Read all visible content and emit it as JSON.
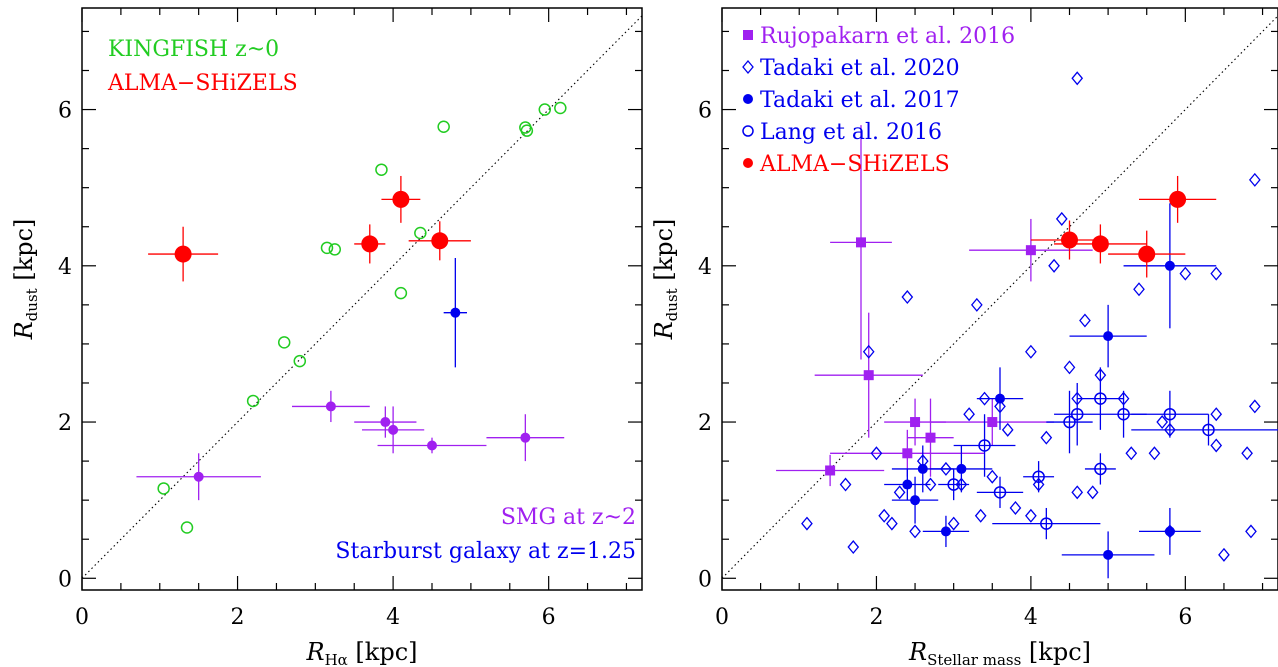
{
  "chart_data": [
    {
      "type": "scatter",
      "panel": "left",
      "xlabel": {
        "main": "R",
        "sub": "Hα",
        "unit": " [kpc]"
      },
      "ylabel": {
        "main": "R",
        "sub": "dust",
        "unit": " [kpc]"
      },
      "xlim": [
        0,
        7.2
      ],
      "ylim": [
        -0.15,
        7.3
      ],
      "xticks": [
        "0",
        "2",
        "4",
        "6"
      ],
      "yticks": [
        "0",
        "2",
        "4",
        "6"
      ],
      "grid": false,
      "one_to_one_line": true,
      "annotations": [
        {
          "text": "KINGFISH z~0",
          "color": "#22cc22",
          "position": "top-left"
        },
        {
          "text": "ALMA−SHiZELS",
          "color": "#ff0000",
          "position": "top-left"
        },
        {
          "text": "SMG at z~2",
          "color": "#a020f0",
          "position": "bottom-right"
        },
        {
          "text": "Starburst galaxy at z=1.25",
          "color": "#0000ee",
          "position": "bottom-right"
        }
      ],
      "series": [
        {
          "name": "KINGFISH z~0",
          "color": "#22cc22",
          "marker": "open-circle",
          "points": [
            {
              "x": 1.05,
              "y": 1.15
            },
            {
              "x": 1.35,
              "y": 0.65
            },
            {
              "x": 2.2,
              "y": 2.27
            },
            {
              "x": 2.6,
              "y": 3.02
            },
            {
              "x": 2.8,
              "y": 2.78
            },
            {
              "x": 3.15,
              "y": 4.23
            },
            {
              "x": 3.25,
              "y": 4.21
            },
            {
              "x": 3.85,
              "y": 5.23
            },
            {
              "x": 4.1,
              "y": 3.65
            },
            {
              "x": 4.35,
              "y": 4.42
            },
            {
              "x": 4.65,
              "y": 5.78
            },
            {
              "x": 5.7,
              "y": 5.77
            },
            {
              "x": 5.72,
              "y": 5.73
            },
            {
              "x": 5.95,
              "y": 6.0
            },
            {
              "x": 6.15,
              "y": 6.02
            }
          ]
        },
        {
          "name": "ALMA−SHiZELS",
          "color": "#ff0000",
          "marker": "filled-circle-large",
          "points": [
            {
              "x": 1.3,
              "y": 4.15,
              "xerr": 0.45,
              "yerr": 0.35
            },
            {
              "x": 3.7,
              "y": 4.28,
              "xerr": 0.2,
              "yerr": 0.25
            },
            {
              "x": 4.1,
              "y": 4.85,
              "xerr": 0.25,
              "yerr": 0.3
            },
            {
              "x": 4.6,
              "y": 4.32,
              "xerr": 0.4,
              "yerr": 0.25
            }
          ]
        },
        {
          "name": "SMG at z~2",
          "color": "#a020f0",
          "marker": "filled-circle",
          "points": [
            {
              "x": 1.5,
              "y": 1.3,
              "xerr": 0.8,
              "yerr": 0.3
            },
            {
              "x": 3.2,
              "y": 2.2,
              "xerr": 0.5,
              "yerr": 0.2
            },
            {
              "x": 3.9,
              "y": 2.0,
              "xerr": 0.4,
              "yerr": 0.2
            },
            {
              "x": 4.0,
              "y": 1.9,
              "xerr": 0.4,
              "yerr": 0.3
            },
            {
              "x": 4.5,
              "y": 1.7,
              "xerr": 0.7,
              "yerr": 0.1
            },
            {
              "x": 5.7,
              "y": 1.8,
              "xerr": 0.5,
              "yerr": 0.3
            }
          ]
        },
        {
          "name": "Starburst galaxy at z=1.25",
          "color": "#0000ee",
          "marker": "filled-circle",
          "points": [
            {
              "x": 4.8,
              "y": 3.4,
              "xerr": 0.15,
              "yerr": 0.7
            }
          ]
        }
      ]
    },
    {
      "type": "scatter",
      "panel": "right",
      "xlabel": {
        "main": "R",
        "sub": "Stellar mass",
        "unit": " [kpc]"
      },
      "ylabel": {
        "main": "R",
        "sub": "dust",
        "unit": " [kpc]"
      },
      "xlim": [
        0,
        7.2
      ],
      "ylim": [
        -0.15,
        7.3
      ],
      "xticks": [
        "0",
        "2",
        "4",
        "6"
      ],
      "yticks": [
        "0",
        "2",
        "4",
        "6"
      ],
      "grid": false,
      "one_to_one_line": true,
      "legend": [
        {
          "text": "Rujopakarn et al. 2016",
          "color": "#a020f0",
          "marker": "filled-square"
        },
        {
          "text": "Tadaki et al. 2020",
          "color": "#0000ee",
          "marker": "open-diamond"
        },
        {
          "text": "Tadaki et al. 2017",
          "color": "#0000ee",
          "marker": "filled-circle"
        },
        {
          "text": "Lang et al. 2016",
          "color": "#0000ee",
          "marker": "open-circle"
        },
        {
          "text": "ALMA−SHiZELS",
          "color": "#ff0000",
          "marker": "filled-circle"
        }
      ],
      "series": [
        {
          "name": "Rujopakarn et al. 2016",
          "color": "#a020f0",
          "marker": "filled-square",
          "points": [
            {
              "x": 1.4,
              "y": 1.38,
              "xerr": 0.7,
              "yerr": 0.2
            },
            {
              "x": 1.8,
              "y": 4.3,
              "xerr": 0.4,
              "yerr": 1.5
            },
            {
              "x": 1.9,
              "y": 2.6,
              "xerr": 0.7,
              "yerr": 0.8
            },
            {
              "x": 2.4,
              "y": 1.6,
              "xerr": 1.0,
              "yerr": 0.3
            },
            {
              "x": 2.5,
              "y": 2.0,
              "xerr": 0.4,
              "yerr": 0.3
            },
            {
              "x": 2.7,
              "y": 1.8,
              "xerr": 0.3,
              "yerr": 0.5
            },
            {
              "x": 3.5,
              "y": 2.0,
              "xerr": 0.8,
              "yerr": 0.3
            },
            {
              "x": 4.0,
              "y": 4.2,
              "xerr": 0.8,
              "yerr": 0.4
            }
          ]
        },
        {
          "name": "Tadaki et al. 2020",
          "color": "#0000ee",
          "marker": "open-diamond",
          "points": [
            {
              "x": 1.1,
              "y": 0.7
            },
            {
              "x": 1.6,
              "y": 1.2
            },
            {
              "x": 1.7,
              "y": 0.4
            },
            {
              "x": 1.9,
              "y": 2.9
            },
            {
              "x": 2.0,
              "y": 1.6
            },
            {
              "x": 2.1,
              "y": 0.8
            },
            {
              "x": 2.2,
              "y": 0.7
            },
            {
              "x": 2.3,
              "y": 1.1
            },
            {
              "x": 2.4,
              "y": 3.6
            },
            {
              "x": 2.5,
              "y": 0.6
            },
            {
              "x": 2.6,
              "y": 1.5
            },
            {
              "x": 2.7,
              "y": 1.2
            },
            {
              "x": 2.9,
              "y": 1.4
            },
            {
              "x": 3.0,
              "y": 0.7
            },
            {
              "x": 3.1,
              "y": 1.2
            },
            {
              "x": 3.2,
              "y": 2.1
            },
            {
              "x": 3.3,
              "y": 3.5
            },
            {
              "x": 3.35,
              "y": 0.8
            },
            {
              "x": 3.4,
              "y": 2.3
            },
            {
              "x": 3.5,
              "y": 1.3
            },
            {
              "x": 3.6,
              "y": 2.2
            },
            {
              "x": 3.7,
              "y": 1.9
            },
            {
              "x": 3.8,
              "y": 0.9
            },
            {
              "x": 4.0,
              "y": 0.8
            },
            {
              "x": 4.0,
              "y": 2.9
            },
            {
              "x": 4.1,
              "y": 1.2
            },
            {
              "x": 4.2,
              "y": 1.8
            },
            {
              "x": 4.3,
              "y": 4.0
            },
            {
              "x": 4.4,
              "y": 4.6
            },
            {
              "x": 4.5,
              "y": 2.7
            },
            {
              "x": 4.6,
              "y": 1.1
            },
            {
              "x": 4.6,
              "y": 2.3
            },
            {
              "x": 4.6,
              "y": 6.4
            },
            {
              "x": 4.7,
              "y": 3.3
            },
            {
              "x": 4.8,
              "y": 1.1
            },
            {
              "x": 4.9,
              "y": 2.6
            },
            {
              "x": 5.2,
              "y": 2.3
            },
            {
              "x": 5.3,
              "y": 1.6
            },
            {
              "x": 5.4,
              "y": 3.7
            },
            {
              "x": 5.6,
              "y": 1.6
            },
            {
              "x": 5.7,
              "y": 2.0
            },
            {
              "x": 5.8,
              "y": 0.6
            },
            {
              "x": 5.8,
              "y": 1.9
            },
            {
              "x": 6.0,
              "y": 3.9
            },
            {
              "x": 6.4,
              "y": 1.7
            },
            {
              "x": 6.4,
              "y": 2.1
            },
            {
              "x": 6.4,
              "y": 3.9
            },
            {
              "x": 6.5,
              "y": 0.3
            },
            {
              "x": 6.8,
              "y": 1.6
            },
            {
              "x": 6.85,
              "y": 0.6
            },
            {
              "x": 6.9,
              "y": 2.2
            },
            {
              "x": 6.9,
              "y": 5.1
            }
          ]
        },
        {
          "name": "Tadaki et al. 2017",
          "color": "#0000ee",
          "marker": "filled-circle",
          "points": [
            {
              "x": 2.4,
              "y": 1.2,
              "xerr": 0.3,
              "yerr": 0.2
            },
            {
              "x": 2.5,
              "y": 1.0,
              "xerr": 0.3,
              "yerr": 0.3
            },
            {
              "x": 2.6,
              "y": 1.4,
              "xerr": 0.4,
              "yerr": 0.3
            },
            {
              "x": 2.9,
              "y": 0.6,
              "xerr": 0.3,
              "yerr": 0.2
            },
            {
              "x": 3.1,
              "y": 1.4,
              "xerr": 0.4,
              "yerr": 0.3
            },
            {
              "x": 3.6,
              "y": 2.3,
              "xerr": 0.3,
              "yerr": 0.4
            },
            {
              "x": 5.0,
              "y": 3.1,
              "xerr": 0.5,
              "yerr": 0.4
            },
            {
              "x": 5.0,
              "y": 0.3,
              "xerr": 0.6,
              "yerr": 0.3
            },
            {
              "x": 5.8,
              "y": 4.0,
              "xerr": 0.6,
              "yerr": 0.8
            },
            {
              "x": 5.8,
              "y": 0.6,
              "xerr": 0.4,
              "yerr": 0.3
            }
          ]
        },
        {
          "name": "Lang et al. 2016",
          "color": "#0000ee",
          "marker": "open-circle",
          "points": [
            {
              "x": 3.0,
              "y": 1.2,
              "xerr": 0.2,
              "yerr": 0.2
            },
            {
              "x": 3.4,
              "y": 1.7,
              "xerr": 0.4,
              "yerr": 0.4
            },
            {
              "x": 3.6,
              "y": 1.1,
              "xerr": 0.3,
              "yerr": 0.2
            },
            {
              "x": 4.1,
              "y": 1.3,
              "xerr": 0.2,
              "yerr": 0.2
            },
            {
              "x": 4.2,
              "y": 0.7,
              "xerr": 0.7,
              "yerr": 0.2
            },
            {
              "x": 4.5,
              "y": 2.0,
              "xerr": 0.3,
              "yerr": 0.4
            },
            {
              "x": 4.6,
              "y": 2.1,
              "xerr": 0.3,
              "yerr": 0.4
            },
            {
              "x": 4.9,
              "y": 2.3,
              "xerr": 0.3,
              "yerr": 0.4
            },
            {
              "x": 4.9,
              "y": 1.4,
              "xerr": 0.2,
              "yerr": 0.2
            },
            {
              "x": 5.2,
              "y": 2.1,
              "xerr": 0.3,
              "yerr": 0.3
            },
            {
              "x": 5.8,
              "y": 2.1,
              "xerr": 0.5,
              "yerr": 0.3
            },
            {
              "x": 6.3,
              "y": 1.9,
              "xerr": 1.0,
              "yerr": 0.2
            }
          ]
        },
        {
          "name": "ALMA−SHiZELS",
          "color": "#ff0000",
          "marker": "filled-circle-large",
          "points": [
            {
              "x": 4.5,
              "y": 4.33,
              "xerr": 0.5,
              "yerr": 0.25
            },
            {
              "x": 4.9,
              "y": 4.28,
              "xerr": 0.6,
              "yerr": 0.25
            },
            {
              "x": 5.5,
              "y": 4.15,
              "xerr": 0.5,
              "yerr": 0.3
            },
            {
              "x": 5.9,
              "y": 4.85,
              "xerr": 0.5,
              "yerr": 0.3
            }
          ]
        }
      ]
    }
  ]
}
